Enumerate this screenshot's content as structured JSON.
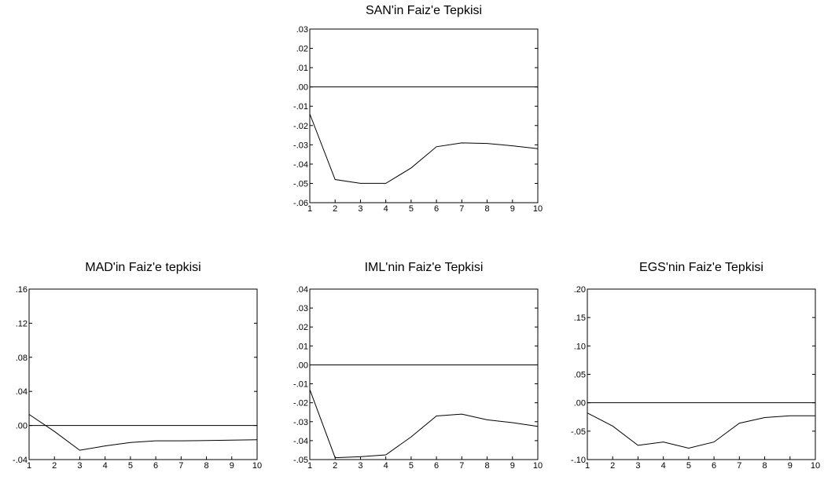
{
  "chart_data": [
    {
      "type": "line",
      "title": "SAN'in Faiz'e Tepkisi",
      "x": [
        1,
        2,
        3,
        4,
        5,
        6,
        7,
        8,
        9,
        10
      ],
      "series": [
        {
          "values": [
            -0.014,
            -0.048,
            -0.05,
            -0.05,
            -0.042,
            -0.031,
            -0.029,
            -0.0293,
            -0.0305,
            -0.032
          ]
        }
      ],
      "xlim": [
        1,
        10
      ],
      "ylim": [
        -0.06,
        0.03
      ],
      "yticks": [
        0.03,
        0.02,
        0.01,
        0.0,
        -0.01,
        -0.02,
        -0.03,
        -0.04,
        -0.05,
        -0.06
      ],
      "yticklabels": [
        ".03",
        ".02",
        ".01",
        ".00",
        "-.01",
        "-.02",
        "-.03",
        "-.04",
        "-.05",
        "-.06"
      ],
      "xticklabels": [
        "1",
        "2",
        "3",
        "4",
        "5",
        "6",
        "7",
        "8",
        "9",
        "10"
      ],
      "zero_line": 0,
      "grid": false
    },
    {
      "type": "line",
      "title": "MAD'in Faiz'e tepkisi",
      "x": [
        1,
        2,
        3,
        4,
        5,
        6,
        7,
        8,
        9,
        10
      ],
      "series": [
        {
          "values": [
            0.013,
            -0.007,
            -0.029,
            -0.024,
            -0.02,
            -0.018,
            -0.018,
            -0.0177,
            -0.0172,
            -0.0167
          ]
        }
      ],
      "xlim": [
        1,
        10
      ],
      "ylim": [
        -0.04,
        0.16
      ],
      "yticks": [
        0.16,
        0.12,
        0.08,
        0.04,
        0.0,
        -0.04
      ],
      "yticklabels": [
        ".16",
        ".12",
        ".08",
        ".04",
        ".00",
        "-.04"
      ],
      "xticklabels": [
        "1",
        "2",
        "3",
        "4",
        "5",
        "6",
        "7",
        "8",
        "9",
        "10"
      ],
      "zero_line": 0,
      "grid": false
    },
    {
      "type": "line",
      "title": "IML'nin Faiz'e Tepkisi",
      "x": [
        1,
        2,
        3,
        4,
        5,
        6,
        7,
        8,
        9,
        10
      ],
      "series": [
        {
          "values": [
            -0.013,
            -0.049,
            -0.0485,
            -0.0475,
            -0.038,
            -0.027,
            -0.026,
            -0.029,
            -0.0305,
            -0.0325
          ]
        }
      ],
      "xlim": [
        1,
        10
      ],
      "ylim": [
        -0.05,
        0.04
      ],
      "yticks": [
        0.04,
        0.03,
        0.02,
        0.01,
        0.0,
        -0.01,
        -0.02,
        -0.03,
        -0.04,
        -0.05
      ],
      "yticklabels": [
        ".04",
        ".03",
        ".02",
        ".01",
        ".00",
        "-.01",
        "-.02",
        "-.03",
        "-.04",
        "-.05"
      ],
      "xticklabels": [
        "1",
        "2",
        "3",
        "4",
        "5",
        "6",
        "7",
        "8",
        "9",
        "10"
      ],
      "zero_line": 0,
      "grid": false
    },
    {
      "type": "line",
      "title": "EGS'nin Faiz'e Tepkisi",
      "x": [
        1,
        2,
        3,
        4,
        5,
        6,
        7,
        8,
        9,
        10
      ],
      "series": [
        {
          "values": [
            -0.018,
            -0.041,
            -0.075,
            -0.069,
            -0.08,
            -0.069,
            -0.036,
            -0.026,
            -0.023,
            -0.023
          ]
        }
      ],
      "xlim": [
        1,
        10
      ],
      "ylim": [
        -0.1,
        0.2
      ],
      "yticks": [
        0.2,
        0.15,
        0.1,
        0.05,
        0.0,
        -0.05,
        -0.1
      ],
      "yticklabels": [
        ".20",
        ".15",
        ".10",
        ".05",
        ".00",
        "-.05",
        "-.10"
      ],
      "xticklabels": [
        "1",
        "2",
        "3",
        "4",
        "5",
        "6",
        "7",
        "8",
        "9",
        "10"
      ],
      "zero_line": 0,
      "grid": false
    }
  ]
}
